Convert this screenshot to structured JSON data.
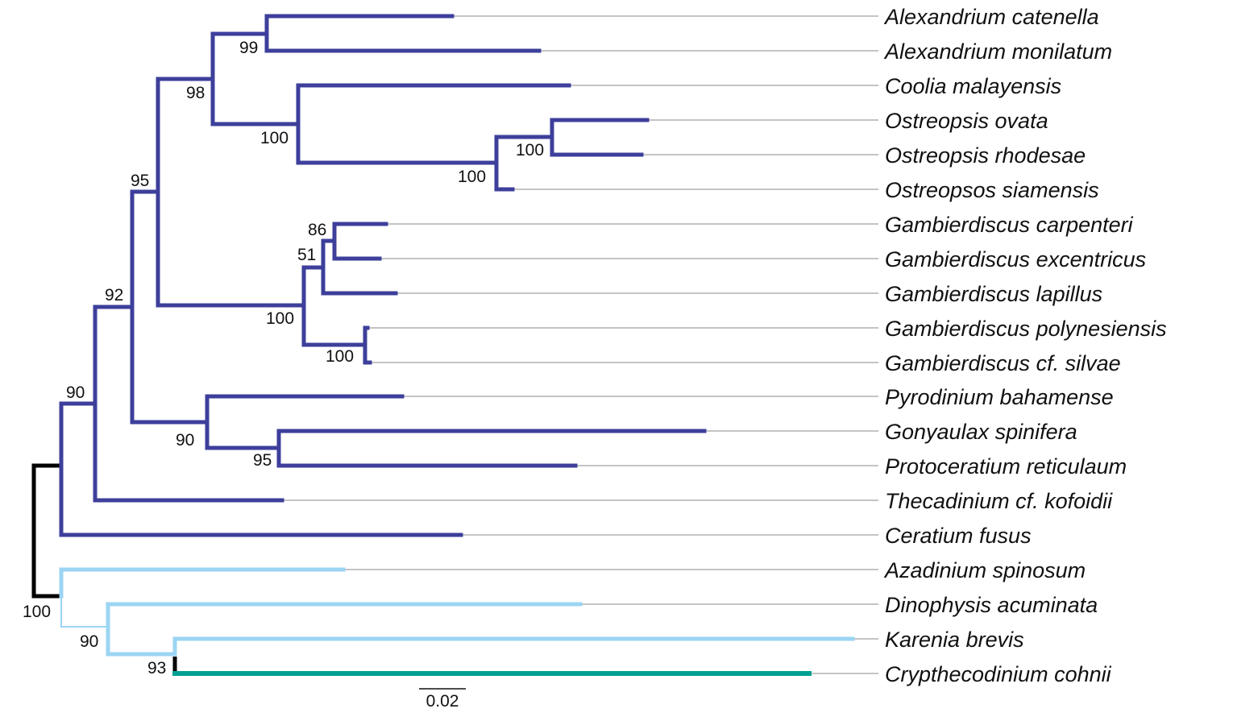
{
  "colors": {
    "clade_dark": "#3d3f9b",
    "clade_light": "#9bd5f3",
    "clade_teal": "#00a093",
    "root": "#000000",
    "guide_line": "#8a8a8a"
  },
  "taxa": [
    "Alexandrium catenella",
    "Alexandrium monilatum",
    "Coolia malayensis",
    "Ostreopsis ovata",
    "Ostreopsis rhodesae",
    "Ostreopsos siamensis",
    "Gambierdiscus carpenteri",
    "Gambierdiscus excentricus",
    "Gambierdiscus lapillus",
    "Gambierdiscus polynesiensis",
    "Gambierdiscus cf. silvae",
    "Pyrodinium bahamense",
    "Gonyaulax spinifera",
    "Protoceratium reticulaum",
    "Thecadinium cf. kofoidii",
    "Ceratium fusus",
    "Azadinium spinosum",
    "Dinophysis acuminata",
    "Karenia brevis",
    "Crypthecodinium cohnii"
  ],
  "support_values": {
    "alexandrium": "99",
    "alexandrium_coolia_ostreopsis": "98",
    "coolia_ostreopsis": "100",
    "ostreopsis_ovata_rhodesae": "100",
    "ostreopsis": "100",
    "upper_group": "95",
    "gambierdiscus_carp_exc": "86",
    "gambierdiscus_carp_exc_lap": "51",
    "gambierdiscus": "100",
    "gambierdiscus_poly_silvae": "100",
    "gonyaulacales": "92",
    "pyrodinium_gonyaulax_protoceratium": "90",
    "gonyaulax_protoceratium": "95",
    "dark_clade": "90",
    "root": "100",
    "light_clade": "90",
    "karenia_crypthecodinium": "93"
  },
  "scale_bar": {
    "label": "0.02"
  }
}
